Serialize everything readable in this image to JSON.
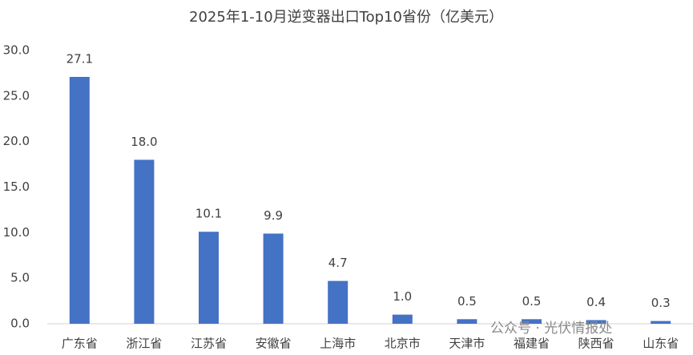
{
  "chart_data": {
    "type": "bar",
    "title": "2025年1-10月逆变器出口Top10省份（亿美元）",
    "categories": [
      "广东省",
      "浙江省",
      "江苏省",
      "安徽省",
      "上海市",
      "北京市",
      "天津市",
      "福建省",
      "陕西省",
      "山东省"
    ],
    "values": [
      27.1,
      18.0,
      10.1,
      9.9,
      4.7,
      1.0,
      0.5,
      0.5,
      0.4,
      0.3
    ],
    "value_labels": [
      "27.1",
      "18.0",
      "10.1",
      "9.9",
      "4.7",
      "1.0",
      "0.5",
      "0.5",
      "0.4",
      "0.3"
    ],
    "color": "#4472c4",
    "ylim": [
      0,
      30
    ],
    "yticks": [
      {
        "value": 0,
        "label": "0.0"
      },
      {
        "value": 5,
        "label": "5.0"
      },
      {
        "value": 10,
        "label": "10.0"
      },
      {
        "value": 15,
        "label": "15.0"
      },
      {
        "value": 20,
        "label": "20.0"
      },
      {
        "value": 25,
        "label": "25.0"
      },
      {
        "value": 30,
        "label": "30.0"
      }
    ],
    "grid": false,
    "watermark": "公众号 · 光伏情报处"
  }
}
